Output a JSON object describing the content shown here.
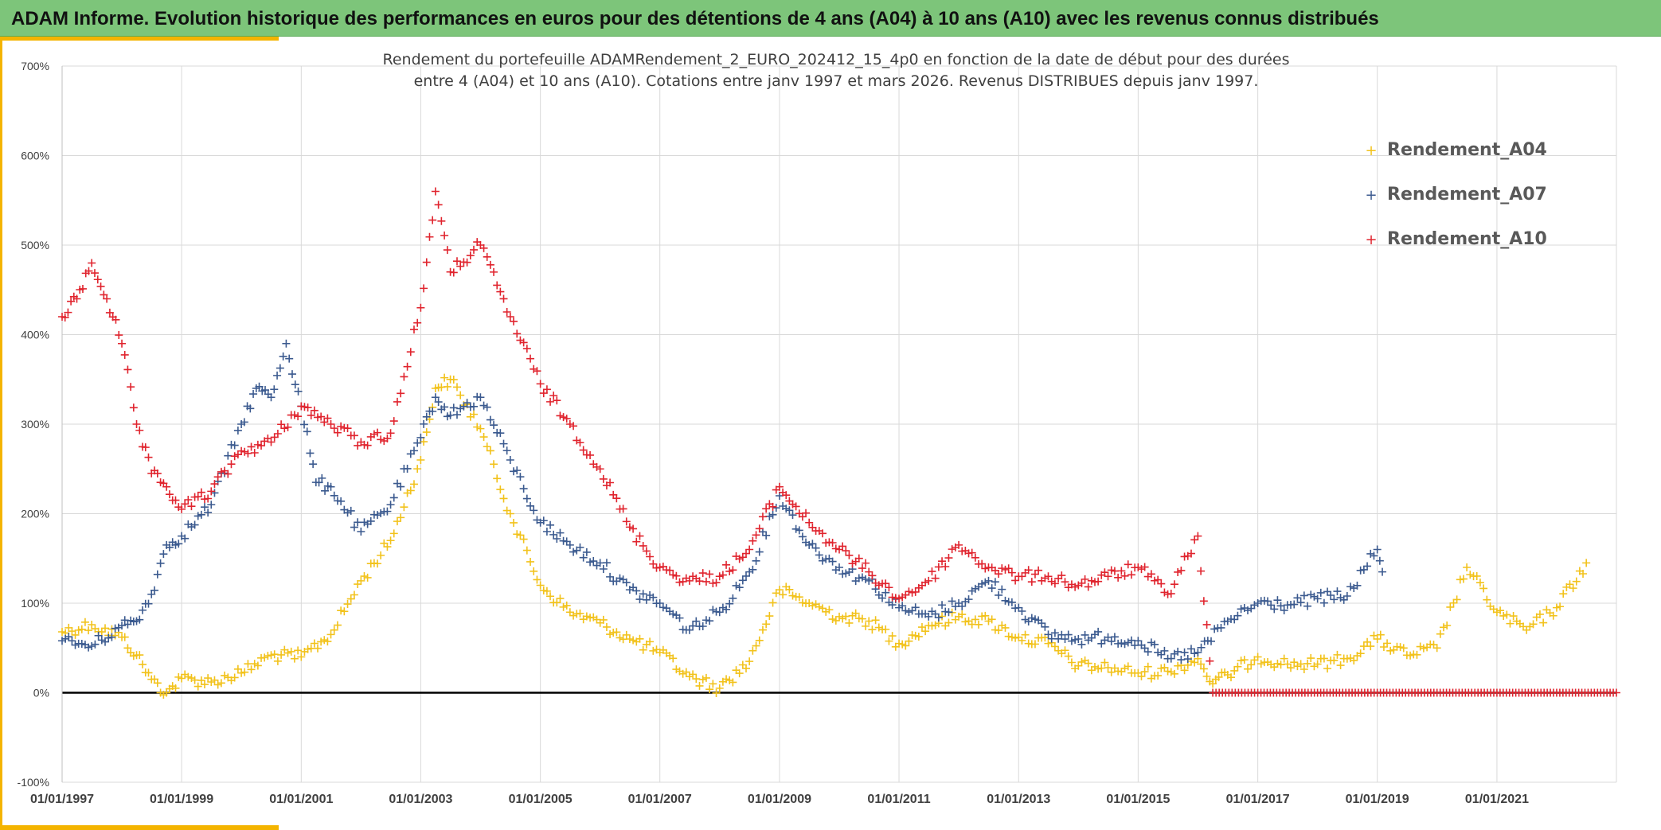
{
  "header": {
    "title": "ADAM Informe. Evolution historique des performances en euros pour des détentions de 4 ans (A04) à 10 ans (A10) avec les revenus connus distribués"
  },
  "colors": {
    "header_bg": "#7dc57a",
    "accent": "#f4b400",
    "A04": "#f2c21b",
    "A07": "#3b5a8f",
    "A10": "#e0242e",
    "zero_line": "#000000",
    "grid": "#d9d9d9"
  },
  "chart_data": {
    "type": "scatter",
    "title_line1": "Rendement du portefeuille ADAMRendement_2_EURO_202412_15_4p0  en fonction de la date de début pour des durées",
    "title_line2": "entre 4 (A04) et 10 ans (A10). Cotations entre janv 1997 et mars 2026. Revenus DISTRIBUES depuis janv 1997.",
    "marker": "+",
    "xlim": [
      "1997-01-01",
      "2023-01-01"
    ],
    "ylim": [
      -100,
      700
    ],
    "y_ticks": [
      -100,
      0,
      100,
      200,
      300,
      400,
      500,
      600,
      700
    ],
    "y_tick_labels": [
      "-100%",
      "0%",
      "100%",
      "200%",
      "300%",
      "400%",
      "500%",
      "600%",
      "700%"
    ],
    "x_ticks": [
      "1997-01-01",
      "1999-01-01",
      "2001-01-01",
      "2003-01-01",
      "2005-01-01",
      "2007-01-01",
      "2009-01-01",
      "2011-01-01",
      "2013-01-01",
      "2015-01-01",
      "2017-01-01",
      "2019-01-01",
      "2021-01-01"
    ],
    "x_tick_labels": [
      "01/01/1997",
      "01/01/1999",
      "01/01/2001",
      "01/01/2003",
      "01/01/2005",
      "01/01/2007",
      "01/01/2009",
      "01/01/2011",
      "01/01/2013",
      "01/01/2015",
      "01/01/2017",
      "01/01/2019",
      "01/01/2021"
    ],
    "legend_position": "top-right",
    "grid": true,
    "series": [
      {
        "name": "Rendement_A04",
        "color": "#f2c21b",
        "points": [
          [
            "1997-01-01",
            68
          ],
          [
            "1997-07-01",
            76
          ],
          [
            "1998-01-01",
            62
          ],
          [
            "1998-04-01",
            42
          ],
          [
            "1998-07-01",
            15
          ],
          [
            "1998-10-01",
            0
          ],
          [
            "1999-01-01",
            16
          ],
          [
            "1999-07-01",
            12
          ],
          [
            "2000-01-01",
            22
          ],
          [
            "2000-07-01",
            42
          ],
          [
            "2001-01-01",
            40
          ],
          [
            "2001-07-01",
            65
          ],
          [
            "2002-01-01",
            125
          ],
          [
            "2002-07-01",
            170
          ],
          [
            "2003-01-01",
            260
          ],
          [
            "2003-04-01",
            340
          ],
          [
            "2003-07-01",
            350
          ],
          [
            "2004-01-01",
            295
          ],
          [
            "2004-07-01",
            200
          ],
          [
            "2005-01-01",
            120
          ],
          [
            "2005-07-01",
            90
          ],
          [
            "2006-01-01",
            78
          ],
          [
            "2006-07-01",
            60
          ],
          [
            "2007-01-01",
            45
          ],
          [
            "2007-07-01",
            18
          ],
          [
            "2008-01-01",
            5
          ],
          [
            "2008-07-01",
            35
          ],
          [
            "2009-01-01",
            115
          ],
          [
            "2009-07-01",
            100
          ],
          [
            "2010-01-01",
            85
          ],
          [
            "2010-07-01",
            80
          ],
          [
            "2011-01-01",
            55
          ],
          [
            "2011-07-01",
            75
          ],
          [
            "2012-01-01",
            85
          ],
          [
            "2012-07-01",
            80
          ],
          [
            "2013-01-01",
            62
          ],
          [
            "2013-07-01",
            55
          ],
          [
            "2014-01-01",
            30
          ],
          [
            "2014-07-01",
            28
          ],
          [
            "2015-01-01",
            22
          ],
          [
            "2015-07-01",
            24
          ],
          [
            "2016-01-01",
            38
          ],
          [
            "2016-04-01",
            10
          ],
          [
            "2016-07-01",
            20
          ],
          [
            "2017-01-01",
            40
          ],
          [
            "2017-07-01",
            32
          ],
          [
            "2018-01-01",
            32
          ],
          [
            "2018-07-01",
            38
          ],
          [
            "2019-01-01",
            60
          ],
          [
            "2019-07-01",
            42
          ],
          [
            "2020-01-01",
            50
          ],
          [
            "2020-07-01",
            140
          ],
          [
            "2021-01-01",
            90
          ],
          [
            "2021-07-01",
            70
          ],
          [
            "2022-01-01",
            95
          ],
          [
            "2022-07-01",
            145
          ]
        ]
      },
      {
        "name": "Rendement_A07",
        "color": "#3b5a8f",
        "points": [
          [
            "1997-01-01",
            58
          ],
          [
            "1997-07-01",
            52
          ],
          [
            "1998-01-01",
            75
          ],
          [
            "1998-04-01",
            80
          ],
          [
            "1998-07-01",
            110
          ],
          [
            "1998-10-01",
            165
          ],
          [
            "1999-01-01",
            175
          ],
          [
            "1999-07-01",
            210
          ],
          [
            "2000-01-01",
            300
          ],
          [
            "2000-04-01",
            340
          ],
          [
            "2000-07-01",
            330
          ],
          [
            "2000-10-01",
            390
          ],
          [
            "2001-01-01",
            320
          ],
          [
            "2001-04-01",
            235
          ],
          [
            "2001-07-01",
            230
          ],
          [
            "2002-01-01",
            180
          ],
          [
            "2002-07-01",
            210
          ],
          [
            "2003-01-01",
            285
          ],
          [
            "2003-04-01",
            330
          ],
          [
            "2003-07-01",
            310
          ],
          [
            "2004-01-01",
            330
          ],
          [
            "2004-07-01",
            260
          ],
          [
            "2005-01-01",
            190
          ],
          [
            "2005-07-01",
            165
          ],
          [
            "2006-01-01",
            145
          ],
          [
            "2006-07-01",
            115
          ],
          [
            "2007-01-01",
            100
          ],
          [
            "2007-07-01",
            70
          ],
          [
            "2008-01-01",
            90
          ],
          [
            "2008-07-01",
            135
          ],
          [
            "2009-01-01",
            220
          ],
          [
            "2009-07-01",
            165
          ],
          [
            "2010-01-01",
            140
          ],
          [
            "2010-07-01",
            125
          ],
          [
            "2011-01-01",
            95
          ],
          [
            "2011-07-01",
            85
          ],
          [
            "2012-01-01",
            100
          ],
          [
            "2012-07-01",
            125
          ],
          [
            "2013-01-01",
            95
          ],
          [
            "2013-07-01",
            65
          ],
          [
            "2014-01-01",
            60
          ],
          [
            "2014-07-01",
            62
          ],
          [
            "2015-01-01",
            58
          ],
          [
            "2015-07-01",
            38
          ],
          [
            "2016-01-01",
            45
          ],
          [
            "2016-07-01",
            80
          ],
          [
            "2017-01-01",
            100
          ],
          [
            "2017-07-01",
            98
          ],
          [
            "2018-01-01",
            105
          ],
          [
            "2018-07-01",
            108
          ],
          [
            "2019-01-01",
            160
          ],
          [
            "2019-02-01",
            135
          ]
        ]
      },
      {
        "name": "Rendement_A10",
        "color": "#e0242e",
        "points": [
          [
            "1997-01-01",
            420
          ],
          [
            "1997-04-01",
            440
          ],
          [
            "1997-07-01",
            480
          ],
          [
            "1997-10-01",
            440
          ],
          [
            "1998-01-01",
            390
          ],
          [
            "1998-04-01",
            300
          ],
          [
            "1998-07-01",
            245
          ],
          [
            "1998-10-01",
            230
          ],
          [
            "1999-01-01",
            205
          ],
          [
            "1999-07-01",
            225
          ],
          [
            "2000-01-01",
            270
          ],
          [
            "2000-07-01",
            280
          ],
          [
            "2001-01-01",
            320
          ],
          [
            "2001-07-01",
            300
          ],
          [
            "2002-01-01",
            280
          ],
          [
            "2002-07-01",
            290
          ],
          [
            "2003-01-01",
            430
          ],
          [
            "2003-04-01",
            560
          ],
          [
            "2003-07-01",
            470
          ],
          [
            "2004-01-01",
            500
          ],
          [
            "2004-07-01",
            420
          ],
          [
            "2005-01-01",
            345
          ],
          [
            "2005-07-01",
            300
          ],
          [
            "2006-01-01",
            250
          ],
          [
            "2006-07-01",
            185
          ],
          [
            "2007-01-01",
            140
          ],
          [
            "2007-07-01",
            125
          ],
          [
            "2008-01-01",
            130
          ],
          [
            "2008-07-01",
            160
          ],
          [
            "2009-01-01",
            230
          ],
          [
            "2009-07-01",
            190
          ],
          [
            "2010-01-01",
            160
          ],
          [
            "2010-07-01",
            135
          ],
          [
            "2011-01-01",
            105
          ],
          [
            "2011-07-01",
            125
          ],
          [
            "2012-01-01",
            165
          ],
          [
            "2012-07-01",
            140
          ],
          [
            "2013-01-01",
            130
          ],
          [
            "2013-07-01",
            130
          ],
          [
            "2014-01-01",
            120
          ],
          [
            "2014-07-01",
            130
          ],
          [
            "2015-01-01",
            140
          ],
          [
            "2015-07-01",
            110
          ],
          [
            "2016-01-01",
            175
          ],
          [
            "2016-04-01",
            0
          ],
          [
            "2017-01-01",
            0
          ],
          [
            "2018-01-01",
            0
          ],
          [
            "2019-01-01",
            0
          ],
          [
            "2020-01-01",
            0
          ],
          [
            "2021-01-01",
            0
          ],
          [
            "2022-01-01",
            0
          ],
          [
            "2023-01-01",
            0
          ]
        ]
      }
    ]
  }
}
